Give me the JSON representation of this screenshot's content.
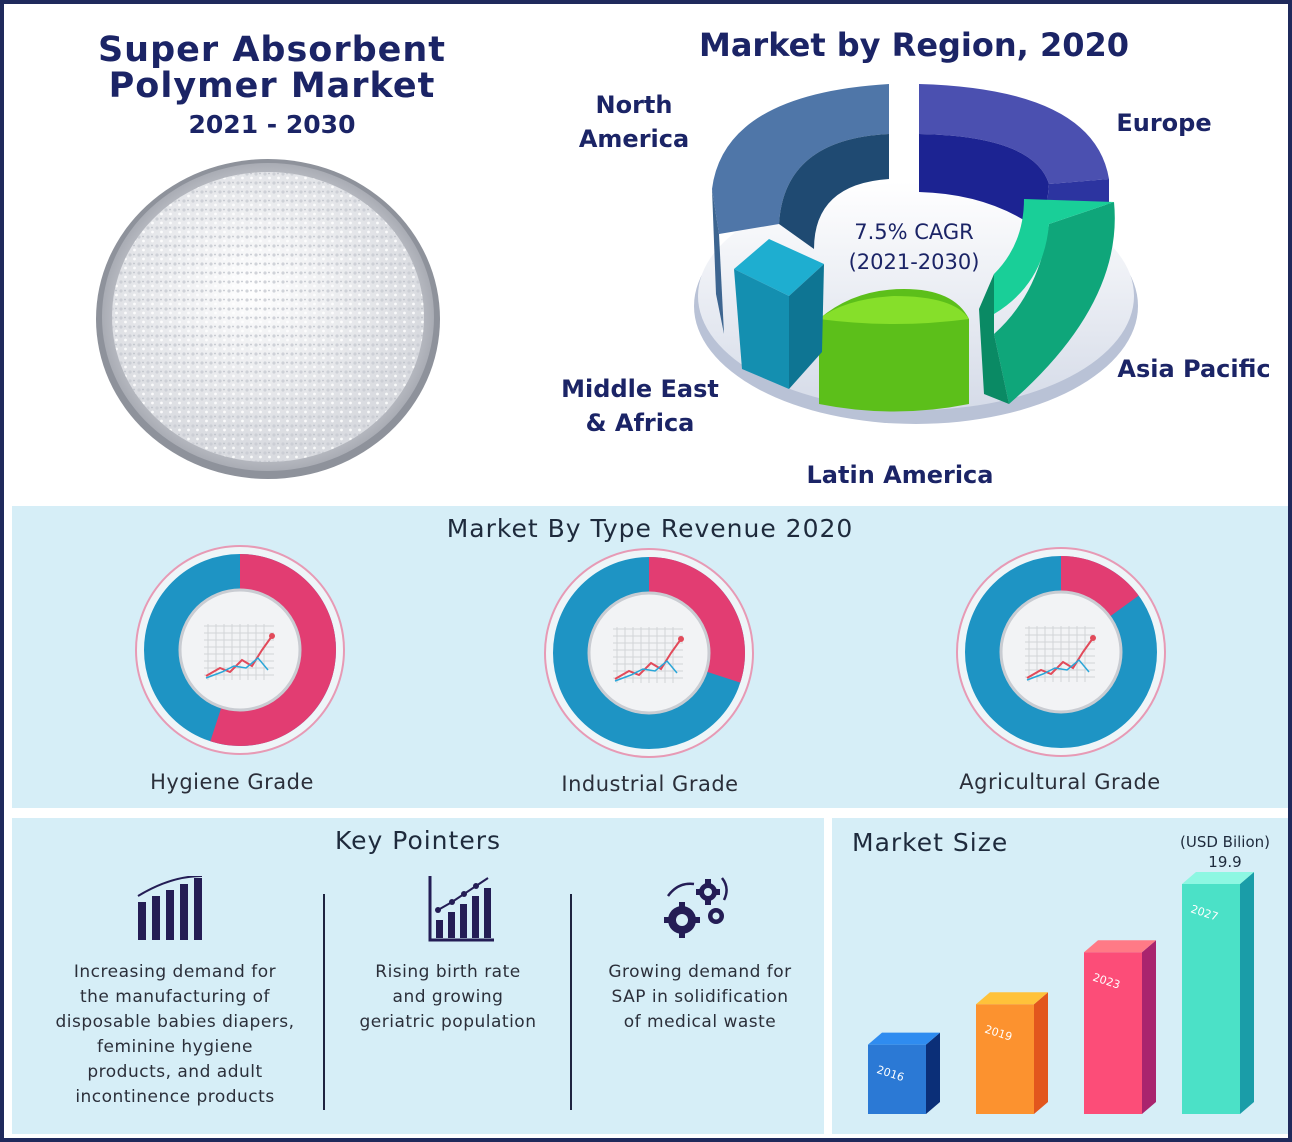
{
  "header": {
    "title_line1": "Super Absorbent",
    "title_line2": "Polymer Market",
    "years": "2021 - 2030"
  },
  "region_section": {
    "title": "Market by Region, 2020",
    "cagr_line1": "7.5% CAGR",
    "cagr_line2": "(2021-2030)",
    "labels": {
      "north_america_1": "North",
      "north_america_2": "America",
      "europe": "Europe",
      "asia_pacific": "Asia Pacific",
      "latin_america": "Latin America",
      "mea_1": "Middle East",
      "mea_2": "& Africa"
    }
  },
  "type_section": {
    "title": "Market By Type Revenue 2020",
    "items": [
      {
        "label": "Hygiene Grade",
        "share": 0.55
      },
      {
        "label": "Industrial Grade",
        "share": 0.3
      },
      {
        "label": "Agricultural Grade",
        "share": 0.15
      }
    ]
  },
  "key_pointers": {
    "title": "Key Pointers",
    "items": [
      {
        "icon": "bar-chart-icon",
        "lines": [
          "Increasing demand for",
          "the manufacturing of",
          "disposable babies diapers,",
          "feminine hygiene",
          "products, and adult",
          "incontinence products"
        ]
      },
      {
        "icon": "growth-chart-icon",
        "lines": [
          "Rising birth rate",
          "and growing",
          "geriatric population"
        ]
      },
      {
        "icon": "gears-icon",
        "lines": [
          "Growing demand for",
          "SAP in solidification",
          "of medical waste"
        ]
      }
    ]
  },
  "market_size": {
    "title": "Market Size",
    "unit": "(USD Bilion)",
    "last_value": "19.9"
  },
  "colors": {
    "navy": "#1b2466",
    "band": "#d6eef7",
    "pink": "#e23d72",
    "blue": "#1e94c4"
  },
  "chart_data": [
    {
      "type": "pie",
      "title": "Market by Region, 2020",
      "categories": [
        "North America",
        "Europe",
        "Asia Pacific",
        "Latin America",
        "Middle East & Africa"
      ],
      "values": [
        29,
        25,
        22,
        14,
        10
      ],
      "annotations": [
        "7.5% CAGR (2021-2030)"
      ]
    },
    {
      "type": "pie",
      "title": "Market By Type Revenue 2020",
      "categories": [
        "Hygiene Grade",
        "Industrial Grade",
        "Agricultural Grade"
      ],
      "values": [
        55,
        30,
        15
      ]
    },
    {
      "type": "bar",
      "title": "Market Size",
      "ylabel": "(USD Bilion)",
      "categories": [
        "2016",
        "2019",
        "2023",
        "2027"
      ],
      "values": [
        6.0,
        9.5,
        14.0,
        19.9
      ],
      "data_labels": [
        "",
        "",
        "",
        "19.9"
      ]
    }
  ]
}
